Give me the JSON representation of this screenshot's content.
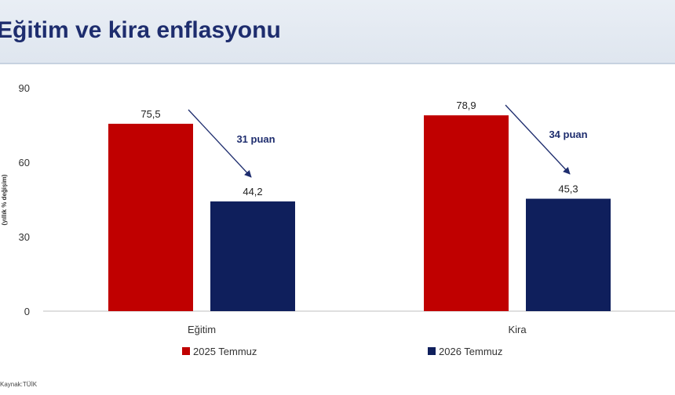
{
  "header": {
    "title": "Eğitim ve kira enflasyonu"
  },
  "chart_data": {
    "type": "bar",
    "title": "Eğitim ve kira enflasyonu",
    "ylabel": "(yıllık % değişim)",
    "xlabel": "",
    "ylim": [
      0,
      90
    ],
    "yticks": [
      "0",
      "30",
      "60",
      "90"
    ],
    "categories": [
      "Eğitim",
      "Kira"
    ],
    "series": [
      {
        "name": "2025 Temmuz",
        "values": [
          75.5,
          78.9
        ],
        "labels": [
          "75,5",
          "78,9"
        ],
        "color": "#c00000"
      },
      {
        "name": "2026 Temmuz",
        "values": [
          44.2,
          45.3
        ],
        "labels": [
          "44,2",
          "45,3"
        ],
        "color": "#0f1f5c"
      }
    ],
    "annotations": [
      "31 puan",
      "34 puan"
    ],
    "legend": "bottom",
    "grid": false
  },
  "source": "Kaynak:TÜİK"
}
